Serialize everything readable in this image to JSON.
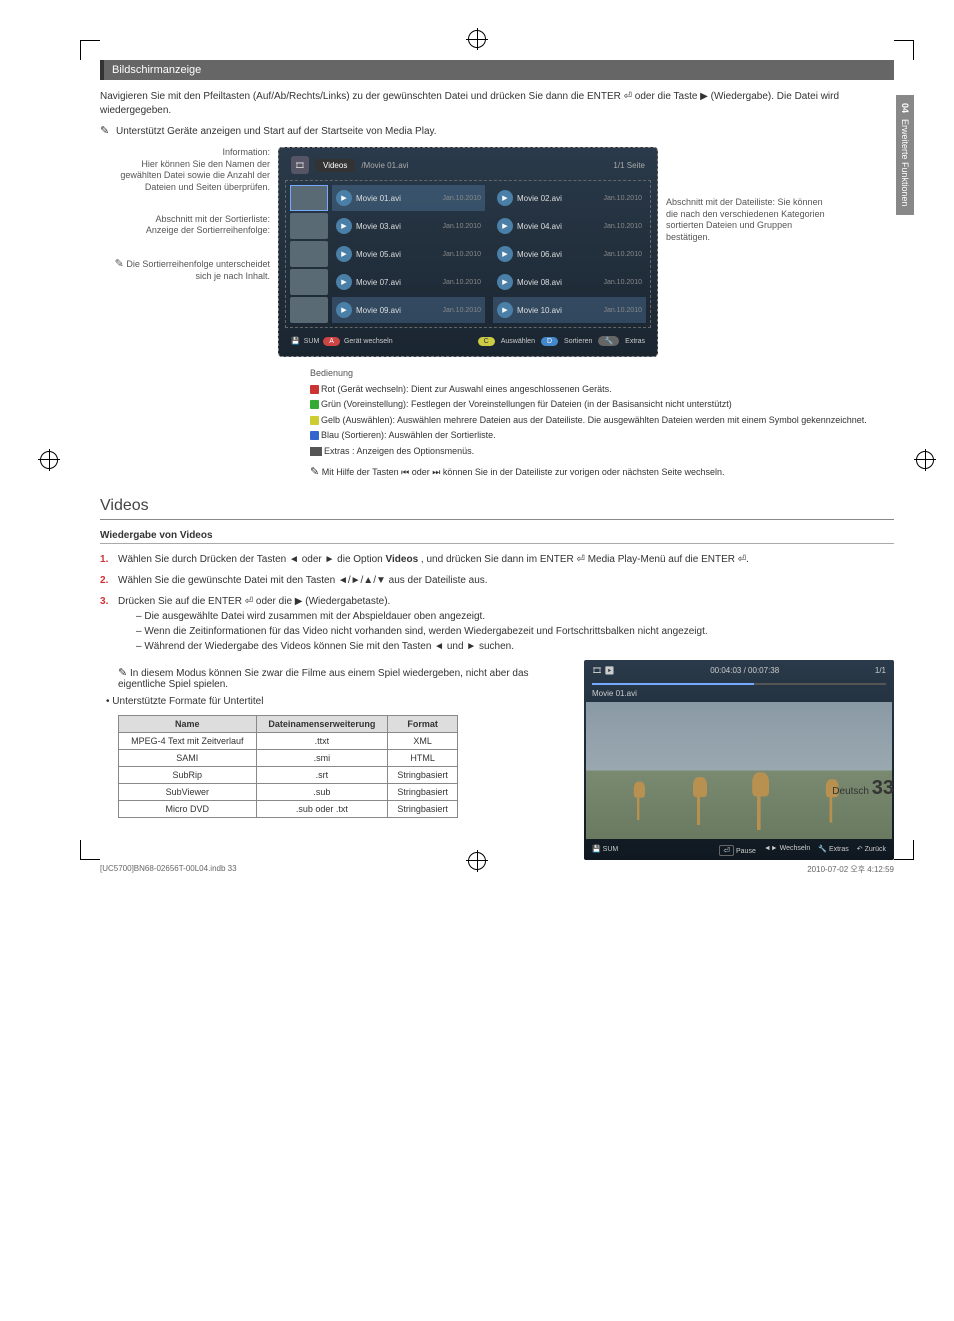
{
  "sideTab": {
    "num": "04",
    "label": "Erweiterte Funktionen"
  },
  "section1": {
    "title": "Bildschirmanzeige",
    "intro": "Navigieren Sie mit den Pfeiltasten (Auf/Ab/Rechts/Links) zu der gewünschten Datei und drücken Sie dann die ENTER ⏎ oder die Taste ▶ (Wiedergabe). Die Datei wird wiedergegeben.",
    "note": "Unterstützt Geräte anzeigen und Start auf der Startseite von Media Play."
  },
  "labels": {
    "info": "Information:",
    "infoDesc": "Hier können Sie den Namen der gewählten Datei sowie die Anzahl der Dateien und Seiten überprüfen.",
    "sort": "Abschnitt mit der Sortierliste:",
    "sortDesc": "Anzeige der Sortierreihenfolge:",
    "sortNote": "Die Sortierreihenfolge unterscheidet sich je nach Inhalt.",
    "right": "Abschnitt mit der Dateiliste: Sie können die nach den verschiedenen Kategorien sortierten Dateien und Gruppen bestätigen."
  },
  "player": {
    "tab": "Videos",
    "crumb": "/Movie 01.avi",
    "pages": "1/1 Seite",
    "files": [
      {
        "n": "Movie 01.avi",
        "d": "Jan.10.2010",
        "sel": true
      },
      {
        "n": "Movie 02.avi",
        "d": "Jan.10.2010"
      },
      {
        "n": "Movie 03.avi",
        "d": "Jan.10.2010"
      },
      {
        "n": "Movie 04.avi",
        "d": "Jan.10.2010"
      },
      {
        "n": "Movie 05.avi",
        "d": "Jan.10.2010"
      },
      {
        "n": "Movie 06.avi",
        "d": "Jan.10.2010"
      },
      {
        "n": "Movie 07.avi",
        "d": "Jan.10.2010"
      },
      {
        "n": "Movie 08.avi",
        "d": "Jan.10.2010"
      },
      {
        "n": "Movie 09.avi",
        "d": "Jan.10.2010",
        "hl": true
      },
      {
        "n": "Movie 10.avi",
        "d": "Jan.10.2010",
        "hl": true
      }
    ],
    "footer": {
      "sum": "SUM",
      "a": "Gerät wechseln",
      "c": "Auswählen",
      "d": "Sortieren",
      "t": "Extras"
    }
  },
  "bedienung": {
    "title": "Bedienung",
    "a": "Rot (Gerät wechseln): Dient zur Auswahl eines angeschlossenen Geräts.",
    "b": "Grün (Voreinstellung): Festlegen der Voreinstellungen für Dateien (in der Basisansicht nicht unterstützt)",
    "c": "Gelb (Auswählen): Auswählen mehrere Dateien aus der Dateiliste. Die ausgewählten Dateien werden mit einem Symbol gekennzeichnet.",
    "d": "Blau (Sortieren): Auswählen der Sortierliste.",
    "t": "Extras : Anzeigen des Optionsmenüs.",
    "note": "Mit Hilfe der Tasten ⏮ oder ⏭ können Sie in der Dateiliste zur vorigen oder nächsten Seite wechseln."
  },
  "videos": {
    "heading": "Videos",
    "sub": "Wiedergabe von Videos",
    "step1a": "Wählen Sie durch Drücken der Tasten ◄ oder ► die Option ",
    "step1b": "Videos",
    "step1c": ", und drücken Sie dann im ENTER ⏎ Media Play-Menü auf die ENTER ⏎.",
    "step2": "Wählen Sie die gewünschte Datei mit den Tasten ◄/►/▲/▼ aus der Dateiliste aus.",
    "step3": "Drücken Sie auf die ENTER ⏎ oder die ▶ (Wiedergabetaste).",
    "d1": "Die ausgewählte Datei wird zusammen mit der Abspieldauer oben angezeigt.",
    "d2": "Wenn die Zeitinformationen für das Video nicht vorhanden sind, werden Wiedergabezeit und Fortschrittsbalken nicht angezeigt.",
    "d3": "Während der Wiedergabe des Videos können Sie mit den Tasten ◄ und ► suchen.",
    "note2": "In diesem Modus können Sie zwar die Filme aus einem Spiel wiedergeben, nicht aber das eigentliche Spiel spielen.",
    "formats": "Unterstützte Formate für Untertitel",
    "table": {
      "h1": "Name",
      "h2": "Dateinamenserweiterung",
      "h3": "Format",
      "rows": [
        [
          "MPEG-4 Text mit Zeitverlauf",
          ".ttxt",
          "XML"
        ],
        [
          "SAMI",
          ".smi",
          "HTML"
        ],
        [
          "SubRip",
          ".srt",
          "Stringbasiert"
        ],
        [
          "SubViewer",
          ".sub",
          "Stringbasiert"
        ],
        [
          "Micro DVD",
          ".sub oder .txt",
          "Stringbasiert"
        ]
      ]
    }
  },
  "preview": {
    "time": "00:04:03 / 00:07:38",
    "page": "1/1",
    "title": "Movie 01.avi",
    "sum": "SUM",
    "pause": "Pause",
    "wechseln": "Wechseln",
    "extras": "Extras",
    "zuruck": "Zurück"
  },
  "footer": {
    "lang": "Deutsch",
    "page": "33"
  },
  "printFooter": {
    "left": "[UC5700]BN68-02656T-00L04.indb   33",
    "right": "2010-07-02   오후 4:12:59"
  }
}
